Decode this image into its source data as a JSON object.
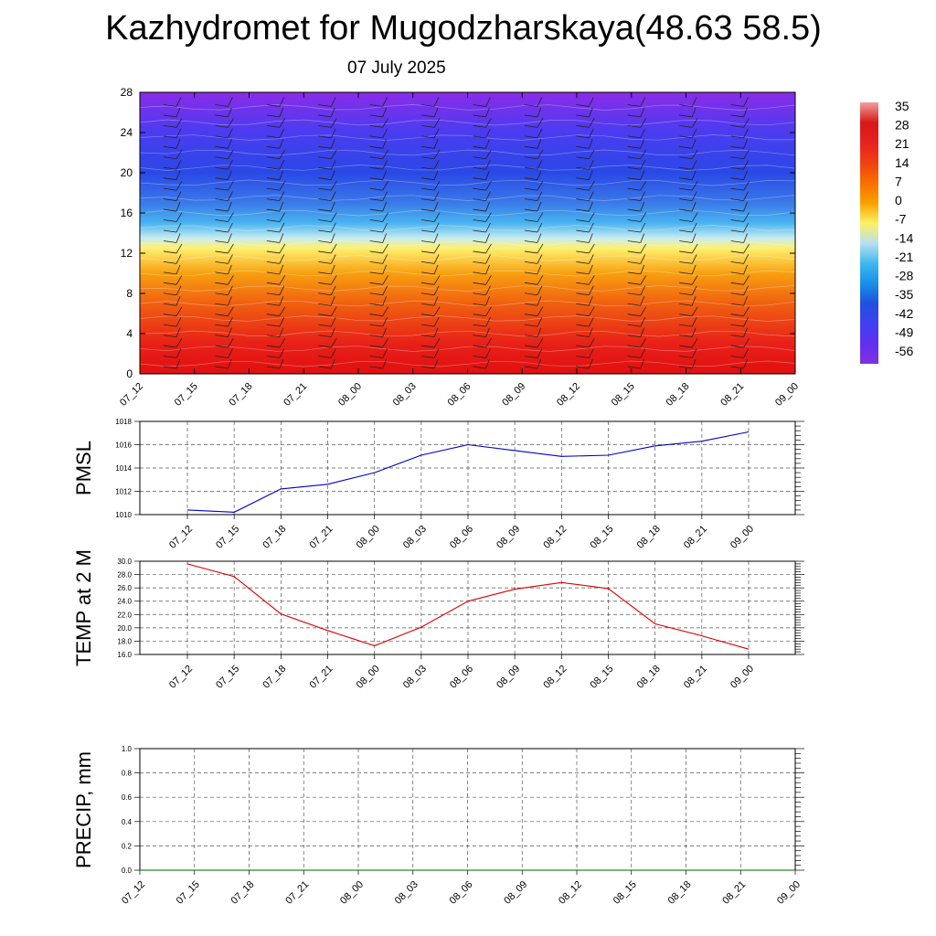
{
  "title": "Kazhydromet for Mugodzharskaya(48.63 58.5)",
  "subtitle": "07 July 2025",
  "chart_data": [
    {
      "type": "heatmap",
      "name": "vertical-profile",
      "x_ticks": [
        "07_12",
        "07_15",
        "07_18",
        "07_21",
        "08_00",
        "08_03",
        "08_06",
        "08_09",
        "08_12",
        "08_15",
        "08_18",
        "08_21",
        "09_00"
      ],
      "y_ticks": [
        "0",
        "4",
        "8",
        "12",
        "16",
        "20",
        "24",
        "28"
      ],
      "ylim": [
        0,
        28
      ],
      "colorbar_labels": [
        "35",
        "28",
        "21",
        "14",
        "7",
        "0",
        "-7",
        "-14",
        "-21",
        "-28",
        "-35",
        "-42",
        "-49",
        "-56"
      ],
      "colorbar_stops": [
        "#f0a0a0",
        "#d81818",
        "#e82020",
        "#f04010",
        "#f87000",
        "#f8a000",
        "#fff060",
        "#b8e0f0",
        "#40b8f0",
        "#1890e8",
        "#2050e0",
        "#4040f0",
        "#6030f0",
        "#8030e0"
      ],
      "band_colors": [
        {
          "level": 28,
          "color": "#8a2ce8"
        },
        {
          "level": 24,
          "color": "#4a3cf0"
        },
        {
          "level": 20,
          "color": "#2a48e6"
        },
        {
          "level": 17,
          "color": "#3a7ae8"
        },
        {
          "level": 15,
          "color": "#48b4f0"
        },
        {
          "level": 13.5,
          "color": "#c8ecf0"
        },
        {
          "level": 12.5,
          "color": "#fff070"
        },
        {
          "level": 10,
          "color": "#f8a010"
        },
        {
          "level": 7,
          "color": "#f06010"
        },
        {
          "level": 3,
          "color": "#e82018"
        },
        {
          "level": 0,
          "color": "#e01010"
        }
      ]
    },
    {
      "type": "line",
      "name": "pmsl",
      "ylabel": "PMSL",
      "categories": [
        "07_12",
        "07_15",
        "07_18",
        "07_21",
        "08_00",
        "08_03",
        "08_06",
        "08_09",
        "08_12",
        "08_15",
        "08_18",
        "08_21",
        "09_00"
      ],
      "y_ticks": [
        "1010",
        "1012",
        "1014",
        "1016",
        "1018"
      ],
      "ylim": [
        1010,
        1018
      ],
      "color": "#0000cc",
      "series": [
        {
          "values": [
            1010.4,
            1010.2,
            1012.2,
            1012.6,
            1013.6,
            1015.1,
            1016.0,
            1015.5,
            1015.0,
            1015.1,
            1015.9,
            1016.3,
            1017.1
          ]
        }
      ]
    },
    {
      "type": "line",
      "name": "temp",
      "ylabel": "TEMP at 2 M",
      "categories": [
        "07_12",
        "07_15",
        "07_18",
        "07_21",
        "08_00",
        "08_03",
        "08_06",
        "08_09",
        "08_12",
        "08_15",
        "08_18",
        "08_21",
        "09_00"
      ],
      "y_ticks": [
        "16.0",
        "18.0",
        "20.0",
        "22.0",
        "24.0",
        "26.0",
        "28.0",
        "30.0"
      ],
      "ylim": [
        16,
        30
      ],
      "color": "#dd0000",
      "series": [
        {
          "values": [
            29.6,
            27.7,
            22.1,
            19.6,
            17.3,
            20.1,
            24.0,
            25.8,
            26.8,
            25.9,
            20.6,
            18.8,
            16.8
          ]
        }
      ]
    },
    {
      "type": "line",
      "name": "precip",
      "ylabel": "PRECIP, mm",
      "categories": [
        "07_12",
        "07_15",
        "07_18",
        "07_21",
        "08_00",
        "08_03",
        "08_06",
        "08_09",
        "08_12",
        "08_15",
        "08_18",
        "08_21",
        "09_00"
      ],
      "y_ticks": [
        "0.0",
        "0.2",
        "0.4",
        "0.6",
        "0.8",
        "1.0"
      ],
      "ylim": [
        0,
        1
      ],
      "color": "#006600",
      "series": [
        {
          "values": [
            0,
            0,
            0,
            0,
            0,
            0,
            0,
            0,
            0,
            0,
            0,
            0,
            0
          ]
        }
      ]
    }
  ]
}
